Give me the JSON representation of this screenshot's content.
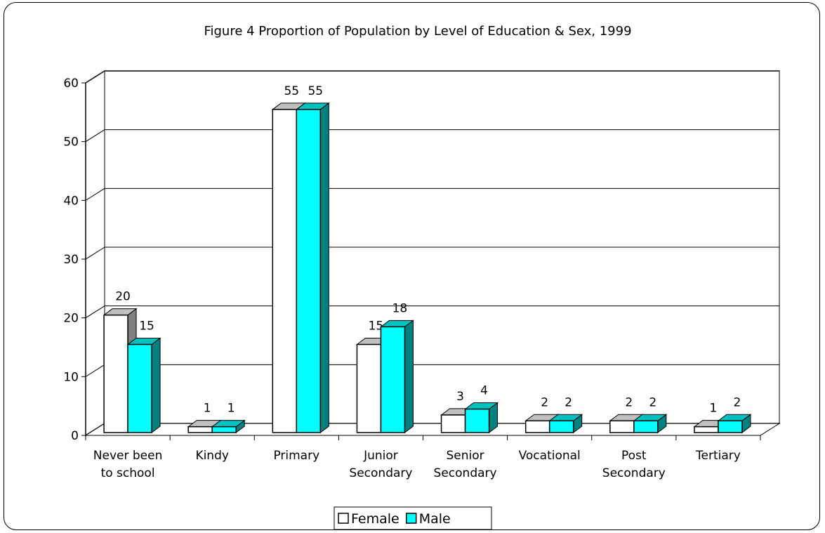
{
  "chart_data": {
    "type": "bar",
    "title": "Figure 4  Proportion of Population by Level of Education & Sex, 1999",
    "categories": [
      [
        "Never been",
        "to school"
      ],
      [
        "Kindy"
      ],
      [
        "Primary"
      ],
      [
        "Junior",
        "Secondary"
      ],
      [
        "Senior",
        "Secondary"
      ],
      [
        "Vocational"
      ],
      [
        "Post",
        "Secondary"
      ],
      [
        "Tertiary"
      ]
    ],
    "series": [
      {
        "name": "Female",
        "values": [
          20,
          1,
          55,
          15,
          3,
          2,
          2,
          1
        ],
        "color": "#ffffff",
        "top_color": "#c0c0c0",
        "side_color": "#808080"
      },
      {
        "name": "Male",
        "values": [
          15,
          1,
          55,
          18,
          4,
          2,
          2,
          2
        ],
        "color": "#00ffff",
        "top_color": "#00c0c0",
        "side_color": "#008080"
      }
    ],
    "y_ticks": [
      0,
      10,
      20,
      30,
      40,
      50,
      60
    ],
    "ylim": [
      0,
      60
    ],
    "grid": true,
    "legend_position": "bottom-center",
    "three_d": true
  }
}
